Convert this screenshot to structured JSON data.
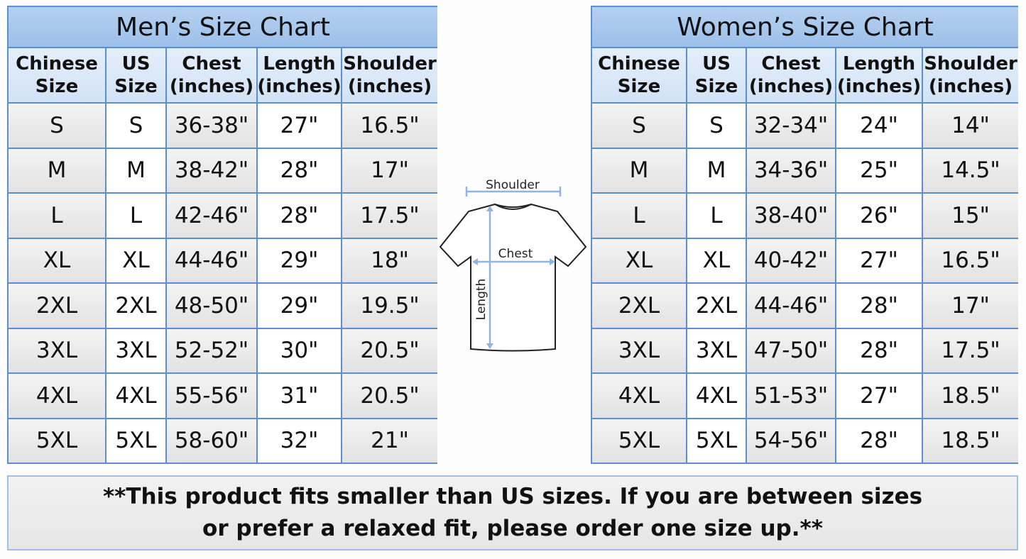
{
  "mens": {
    "title": "Men’s Size Chart",
    "headers": [
      "Chinese Size",
      "US Size",
      "Chest (inches)",
      "Length (inches)",
      "Shoulder (inches)"
    ],
    "rows": [
      [
        "S",
        "S",
        "36-38\"",
        "27\"",
        "16.5\""
      ],
      [
        "M",
        "M",
        "38-42\"",
        "28\"",
        "17\""
      ],
      [
        "L",
        "L",
        "42-46\"",
        "28\"",
        "17.5\""
      ],
      [
        "XL",
        "XL",
        "44-46\"",
        "29\"",
        "18\""
      ],
      [
        "2XL",
        "2XL",
        "48-50\"",
        "29\"",
        "19.5\""
      ],
      [
        "3XL",
        "3XL",
        "52-52\"",
        "30\"",
        "20.5\""
      ],
      [
        "4XL",
        "4XL",
        "55-56\"",
        "31\"",
        "20.5\""
      ],
      [
        "5XL",
        "5XL",
        "58-60\"",
        "32\"",
        "21\""
      ]
    ]
  },
  "womens": {
    "title": "Women’s Size Chart",
    "headers": [
      "Chinese Size",
      "US Size",
      "Chest (inches)",
      "Length (inches)",
      "Shoulder (inches)"
    ],
    "rows": [
      [
        "S",
        "S",
        "32-34\"",
        "24\"",
        "14\""
      ],
      [
        "M",
        "M",
        "34-36\"",
        "25\"",
        "14.5\""
      ],
      [
        "L",
        "L",
        "38-40\"",
        "26\"",
        "15\""
      ],
      [
        "XL",
        "XL",
        "40-42\"",
        "27\"",
        "16.5\""
      ],
      [
        "2XL",
        "2XL",
        "44-46\"",
        "28\"",
        "17\""
      ],
      [
        "3XL",
        "3XL",
        "47-50\"",
        "28\"",
        "17.5\""
      ],
      [
        "4XL",
        "4XL",
        "51-53\"",
        "27\"",
        "18.5\""
      ],
      [
        "5XL",
        "5XL",
        "54-56\"",
        "28\"",
        "18.5\""
      ]
    ]
  },
  "diagram": {
    "shoulder": "Shoulder",
    "chest": "Chest",
    "length": "Length"
  },
  "note": {
    "lines": [
      "**This product fits smaller than US sizes. If you are between sizes",
      "or prefer a relaxed fit, please order one size up.**"
    ]
  }
}
